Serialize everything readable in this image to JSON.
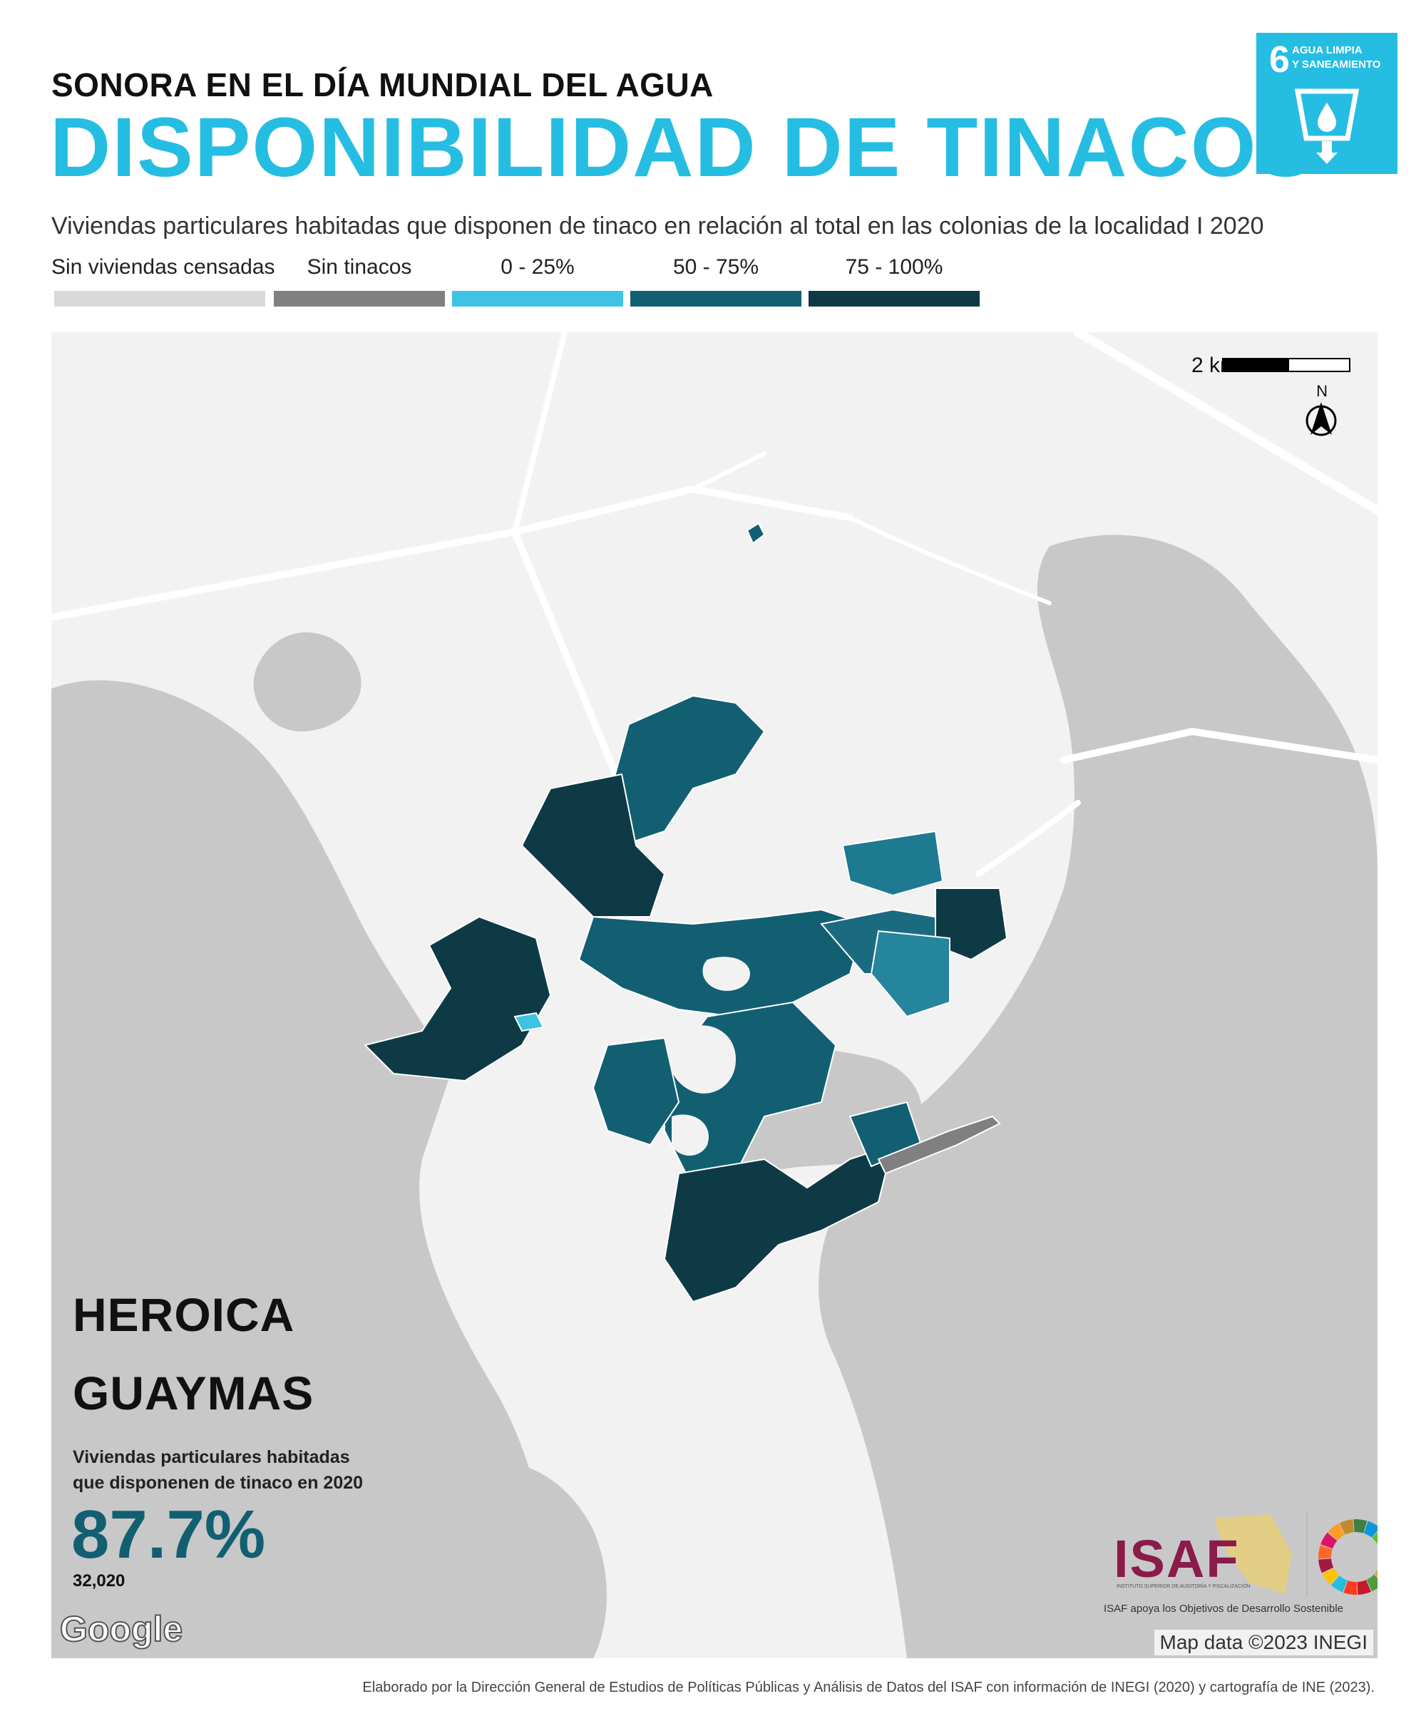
{
  "header": {
    "kicker": "SONORA EN EL DÍA MUNDIAL DEL AGUA",
    "title": "DISPONIBILIDAD DE TINACOS",
    "subtitle": "Viviendas particulares habitadas que disponen de tinaco en relación al total en las colonias de la localidad I 2020"
  },
  "sdg_badge": {
    "number": "6",
    "line1": "AGUA LIMPIA",
    "line2": "Y SANEAMIENTO",
    "color": "#26bde2",
    "icon": "water-glass-icon"
  },
  "legend": {
    "items": [
      {
        "label": "Sin viviendas censadas",
        "color": "#d9d9d9"
      },
      {
        "label": "Sin tinacos",
        "color": "#808080"
      },
      {
        "label": "0 - 25%",
        "color": "#3ec3e3"
      },
      {
        "label": "50 - 75%",
        "color": "#125f72"
      },
      {
        "label": "75 - 100%",
        "color": "#0e3a46"
      }
    ]
  },
  "map": {
    "scale_label": "2 km",
    "north_label": "N",
    "city_line1": "HEROICA",
    "city_line2": "GUAYMAS",
    "stat_line1": "Viviendas particulares habitadas",
    "stat_line2": "que disponenen de tinaco en 2020",
    "stat_value": "87.7%",
    "stat_count": "32,020",
    "provider_logo": "Google",
    "attribution": "Map data ©2023 INEGI",
    "colors": {
      "land": "#f2f2f2",
      "water": "#c8c8c8",
      "roads": "#ffffff"
    }
  },
  "branding": {
    "isaf": "ISAF",
    "isaf_sub": "INSTITUTO SUPERIOR DE AUDITORÍA Y FISCALIZACIÓN",
    "isaf_tagline": "ISAF apoya los Objetivos de Desarrollo Sostenible"
  },
  "footer": "Elaborado por la Dirección General de Estudios de Políticas Públicas y Análisis de Datos del ISAF con información de INEGI (2020) y cartografía de INE (2023)."
}
